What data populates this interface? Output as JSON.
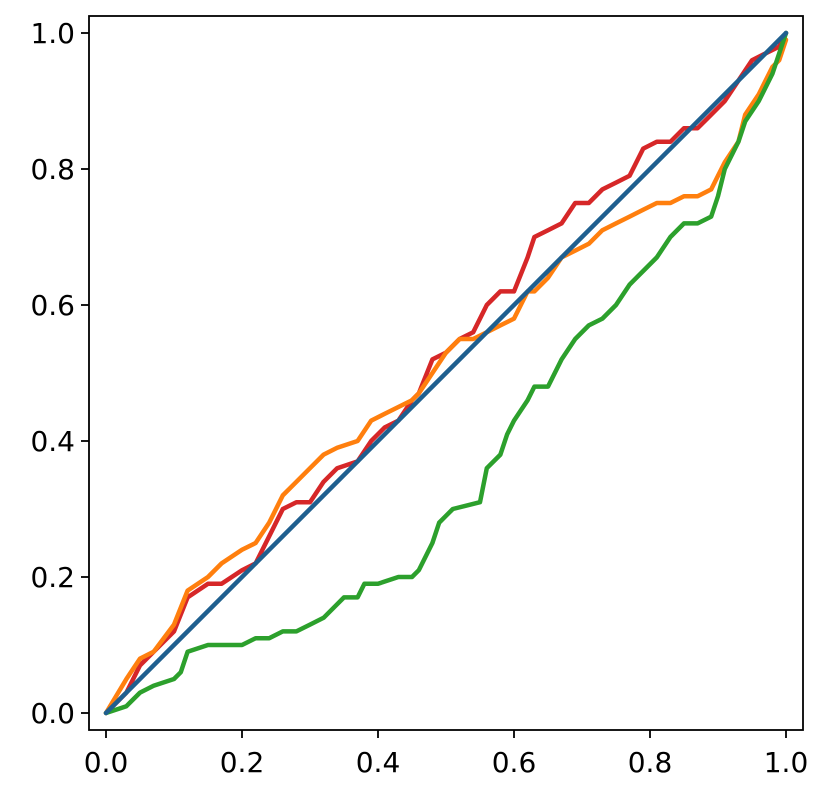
{
  "chart_data": {
    "type": "line",
    "title": "",
    "xlabel": "",
    "ylabel": "",
    "xlim": [
      -0.025,
      1.025
    ],
    "ylim": [
      -0.025,
      1.025
    ],
    "grid": false,
    "legend": "none",
    "x_ticks": [
      0.0,
      0.2,
      0.4,
      0.6,
      0.8,
      1.0
    ],
    "x_tick_labels": [
      "0.0",
      "0.2",
      "0.4",
      "0.6",
      "0.8",
      "1.0"
    ],
    "y_ticks": [
      0.0,
      0.2,
      0.4,
      0.6,
      0.8,
      1.0
    ],
    "y_tick_labels": [
      "0.0",
      "0.2",
      "0.4",
      "0.6",
      "0.8",
      "1.0"
    ],
    "series": [
      {
        "color": "#d62728",
        "points": [
          [
            0.0,
            0.0
          ],
          [
            0.03,
            0.03
          ],
          [
            0.05,
            0.07
          ],
          [
            0.07,
            0.09
          ],
          [
            0.1,
            0.12
          ],
          [
            0.12,
            0.17
          ],
          [
            0.15,
            0.19
          ],
          [
            0.17,
            0.19
          ],
          [
            0.2,
            0.21
          ],
          [
            0.22,
            0.22
          ],
          [
            0.24,
            0.26
          ],
          [
            0.26,
            0.3
          ],
          [
            0.28,
            0.31
          ],
          [
            0.3,
            0.31
          ],
          [
            0.32,
            0.34
          ],
          [
            0.34,
            0.36
          ],
          [
            0.37,
            0.37
          ],
          [
            0.39,
            0.4
          ],
          [
            0.41,
            0.42
          ],
          [
            0.43,
            0.43
          ],
          [
            0.45,
            0.46
          ],
          [
            0.46,
            0.47
          ],
          [
            0.48,
            0.52
          ],
          [
            0.5,
            0.53
          ],
          [
            0.52,
            0.55
          ],
          [
            0.54,
            0.56
          ],
          [
            0.56,
            0.6
          ],
          [
            0.58,
            0.62
          ],
          [
            0.6,
            0.62
          ],
          [
            0.62,
            0.67
          ],
          [
            0.63,
            0.7
          ],
          [
            0.65,
            0.71
          ],
          [
            0.67,
            0.72
          ],
          [
            0.69,
            0.75
          ],
          [
            0.71,
            0.75
          ],
          [
            0.73,
            0.77
          ],
          [
            0.75,
            0.78
          ],
          [
            0.77,
            0.79
          ],
          [
            0.79,
            0.83
          ],
          [
            0.81,
            0.84
          ],
          [
            0.83,
            0.84
          ],
          [
            0.85,
            0.86
          ],
          [
            0.87,
            0.86
          ],
          [
            0.89,
            0.88
          ],
          [
            0.91,
            0.9
          ],
          [
            0.93,
            0.93
          ],
          [
            0.95,
            0.96
          ],
          [
            0.97,
            0.97
          ],
          [
            0.99,
            0.98
          ],
          [
            1.0,
            1.0
          ]
        ]
      },
      {
        "color": "#ff7f0e",
        "points": [
          [
            0.0,
            0.0
          ],
          [
            0.03,
            0.05
          ],
          [
            0.05,
            0.08
          ],
          [
            0.07,
            0.09
          ],
          [
            0.1,
            0.13
          ],
          [
            0.12,
            0.18
          ],
          [
            0.15,
            0.2
          ],
          [
            0.17,
            0.22
          ],
          [
            0.2,
            0.24
          ],
          [
            0.22,
            0.25
          ],
          [
            0.24,
            0.28
          ],
          [
            0.26,
            0.32
          ],
          [
            0.28,
            0.34
          ],
          [
            0.3,
            0.36
          ],
          [
            0.32,
            0.38
          ],
          [
            0.34,
            0.39
          ],
          [
            0.37,
            0.4
          ],
          [
            0.39,
            0.43
          ],
          [
            0.41,
            0.44
          ],
          [
            0.43,
            0.45
          ],
          [
            0.45,
            0.46
          ],
          [
            0.46,
            0.47
          ],
          [
            0.48,
            0.5
          ],
          [
            0.5,
            0.53
          ],
          [
            0.52,
            0.55
          ],
          [
            0.54,
            0.55
          ],
          [
            0.56,
            0.56
          ],
          [
            0.58,
            0.57
          ],
          [
            0.6,
            0.58
          ],
          [
            0.62,
            0.62
          ],
          [
            0.63,
            0.62
          ],
          [
            0.65,
            0.64
          ],
          [
            0.67,
            0.67
          ],
          [
            0.69,
            0.68
          ],
          [
            0.71,
            0.69
          ],
          [
            0.73,
            0.71
          ],
          [
            0.75,
            0.72
          ],
          [
            0.77,
            0.73
          ],
          [
            0.79,
            0.74
          ],
          [
            0.81,
            0.75
          ],
          [
            0.83,
            0.75
          ],
          [
            0.85,
            0.76
          ],
          [
            0.87,
            0.76
          ],
          [
            0.89,
            0.77
          ],
          [
            0.9,
            0.79
          ],
          [
            0.91,
            0.81
          ],
          [
            0.93,
            0.84
          ],
          [
            0.94,
            0.88
          ],
          [
            0.96,
            0.91
          ],
          [
            0.98,
            0.95
          ],
          [
            0.99,
            0.96
          ],
          [
            1.0,
            0.99
          ]
        ]
      },
      {
        "color": "#2ca02c",
        "points": [
          [
            0.0,
            0.0
          ],
          [
            0.03,
            0.01
          ],
          [
            0.05,
            0.03
          ],
          [
            0.07,
            0.04
          ],
          [
            0.1,
            0.05
          ],
          [
            0.11,
            0.06
          ],
          [
            0.12,
            0.09
          ],
          [
            0.15,
            0.1
          ],
          [
            0.17,
            0.1
          ],
          [
            0.2,
            0.1
          ],
          [
            0.22,
            0.11
          ],
          [
            0.24,
            0.11
          ],
          [
            0.26,
            0.12
          ],
          [
            0.28,
            0.12
          ],
          [
            0.3,
            0.13
          ],
          [
            0.32,
            0.14
          ],
          [
            0.34,
            0.16
          ],
          [
            0.35,
            0.17
          ],
          [
            0.37,
            0.17
          ],
          [
            0.38,
            0.19
          ],
          [
            0.4,
            0.19
          ],
          [
            0.43,
            0.2
          ],
          [
            0.45,
            0.2
          ],
          [
            0.46,
            0.21
          ],
          [
            0.48,
            0.25
          ],
          [
            0.49,
            0.28
          ],
          [
            0.5,
            0.29
          ],
          [
            0.51,
            0.3
          ],
          [
            0.55,
            0.31
          ],
          [
            0.56,
            0.36
          ],
          [
            0.58,
            0.38
          ],
          [
            0.59,
            0.41
          ],
          [
            0.6,
            0.43
          ],
          [
            0.62,
            0.46
          ],
          [
            0.63,
            0.48
          ],
          [
            0.65,
            0.48
          ],
          [
            0.67,
            0.52
          ],
          [
            0.69,
            0.55
          ],
          [
            0.71,
            0.57
          ],
          [
            0.73,
            0.58
          ],
          [
            0.75,
            0.6
          ],
          [
            0.77,
            0.63
          ],
          [
            0.79,
            0.65
          ],
          [
            0.81,
            0.67
          ],
          [
            0.83,
            0.7
          ],
          [
            0.85,
            0.72
          ],
          [
            0.87,
            0.72
          ],
          [
            0.89,
            0.73
          ],
          [
            0.9,
            0.76
          ],
          [
            0.91,
            0.8
          ],
          [
            0.93,
            0.84
          ],
          [
            0.94,
            0.87
          ],
          [
            0.96,
            0.9
          ],
          [
            0.98,
            0.94
          ],
          [
            1.0,
            1.0
          ]
        ]
      },
      {
        "color": "#1f5f8f",
        "points": [
          [
            0.0,
            0.0
          ],
          [
            1.0,
            1.0
          ]
        ]
      }
    ]
  }
}
